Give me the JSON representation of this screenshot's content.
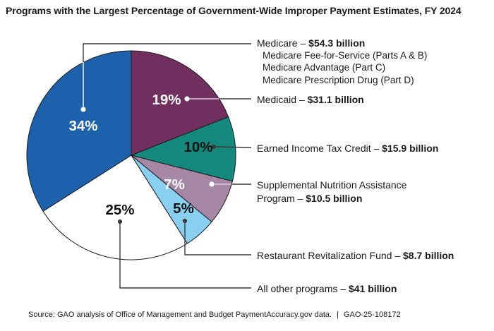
{
  "title": "Programs with the Largest Percentage of Government-Wide Improper Payment Estimates, FY 2024",
  "chart_data": {
    "type": "pie",
    "title": "Programs with the Largest Percentage of Government-Wide Improper Payment Estimates, FY 2024",
    "start_angle_deg": 0,
    "direction": "clockwise",
    "slices": [
      {
        "key": "medicaid",
        "name": "Medicaid",
        "pct": 19,
        "value_billions": 31.1,
        "amount": "$31.1 billion",
        "color": "#712f60",
        "pct_color": "#ffffff"
      },
      {
        "key": "eitc",
        "name": "Earned Income Tax Credit",
        "pct": 10,
        "value_billions": 15.9,
        "amount": "$15.9 billion",
        "color": "#15897e",
        "pct_color": "#111111"
      },
      {
        "key": "snap",
        "name": "Supplemental Nutrition Assistance Program",
        "pct": 7,
        "value_billions": 10.5,
        "amount": "$10.5 billion",
        "color": "#a688a6",
        "pct_color": "#ffffff"
      },
      {
        "key": "rrf",
        "name": "Restaurant Revitalization Fund",
        "pct": 5,
        "value_billions": 8.7,
        "amount": "$8.7 billion",
        "color": "#89cfef",
        "pct_color": "#111111"
      },
      {
        "key": "all-other",
        "name": "All other programs",
        "pct": 25,
        "value_billions": 41,
        "amount": "$41 billion",
        "color": "#ffffff",
        "pct_color": "#111111"
      },
      {
        "key": "medicare",
        "name": "Medicare",
        "pct": 34,
        "value_billions": 54.3,
        "amount": "$54.3 billion",
        "color": "#1d61ad",
        "pct_color": "#ffffff",
        "components": [
          "Medicare Fee-for-Service (Parts A & B)",
          "Medicare Advantage (Part C)",
          "Medicare Prescription Drug (Part D)"
        ]
      }
    ],
    "colors": {
      "outline": "#1a1a1a",
      "leader_dark": "#3a3a3a",
      "leader_light": "#e0cade"
    }
  },
  "labels": [
    {
      "text": "Medicare – ",
      "amount": "$54.3 billion",
      "sublines": [
        "Medicare Fee-for-Service (Parts A & B)",
        "Medicare Advantage (Part C)",
        "Medicare Prescription Drug (Part D)"
      ]
    },
    {
      "text": "Medicaid – ",
      "amount": "$31.1 billion"
    },
    {
      "text": "Earned Income Tax Credit – ",
      "amount": "$15.9 billion"
    },
    {
      "text": "Supplemental Nutrition Assistance Program – ",
      "amount": "$10.5 billion"
    },
    {
      "text": "Restaurant Revitalization Fund – ",
      "amount": "$8.7 billion"
    },
    {
      "text": "All other programs – ",
      "amount": "$41 billion"
    }
  ],
  "source": {
    "text": "Source: GAO analysis of Office of Management and Budget PaymentAccuracy.gov data.",
    "separator": "|",
    "report_id": "GAO-25-108172"
  }
}
